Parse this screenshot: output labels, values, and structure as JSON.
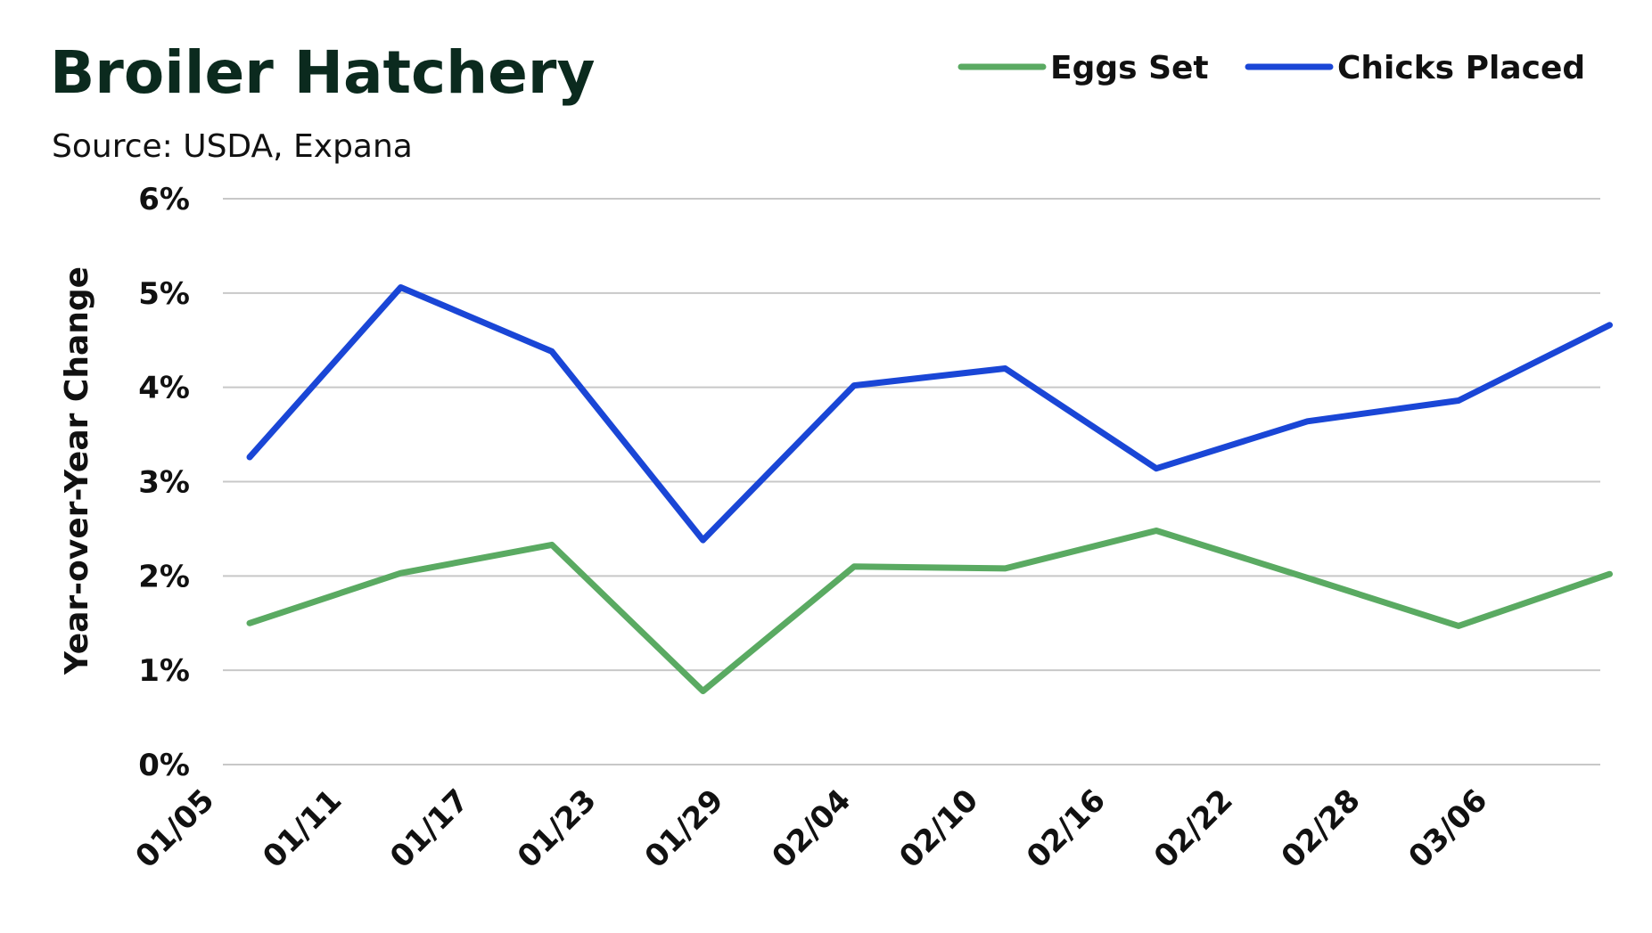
{
  "chart_data": {
    "type": "line",
    "title": "Broiler Hatchery",
    "subtitle": "Source: USDA, Expana",
    "xlabel": "",
    "ylabel": "Year-over-Year Change",
    "x_tick_labels": [
      "01/05",
      "01/11",
      "01/17",
      "01/23",
      "01/29",
      "02/04",
      "02/10",
      "02/16",
      "02/22",
      "02/28",
      "03/06"
    ],
    "y_tick_labels": [
      "0%",
      "1%",
      "2%",
      "3%",
      "4%",
      "5%",
      "6%"
    ],
    "ylim": [
      0,
      6
    ],
    "grid": "horizontal",
    "legend_position": "top-right",
    "series": [
      {
        "name": "Eggs Set",
        "color": "#5aaa62",
        "values": [
          1.5,
          2.03,
          2.33,
          0.78,
          2.1,
          2.08,
          2.48,
          1.98,
          1.47,
          2.02
        ]
      },
      {
        "name": "Chicks Placed",
        "color": "#1a46d6",
        "values": [
          3.26,
          5.06,
          4.38,
          2.38,
          4.02,
          4.2,
          3.14,
          3.64,
          3.86,
          4.66
        ]
      }
    ]
  }
}
